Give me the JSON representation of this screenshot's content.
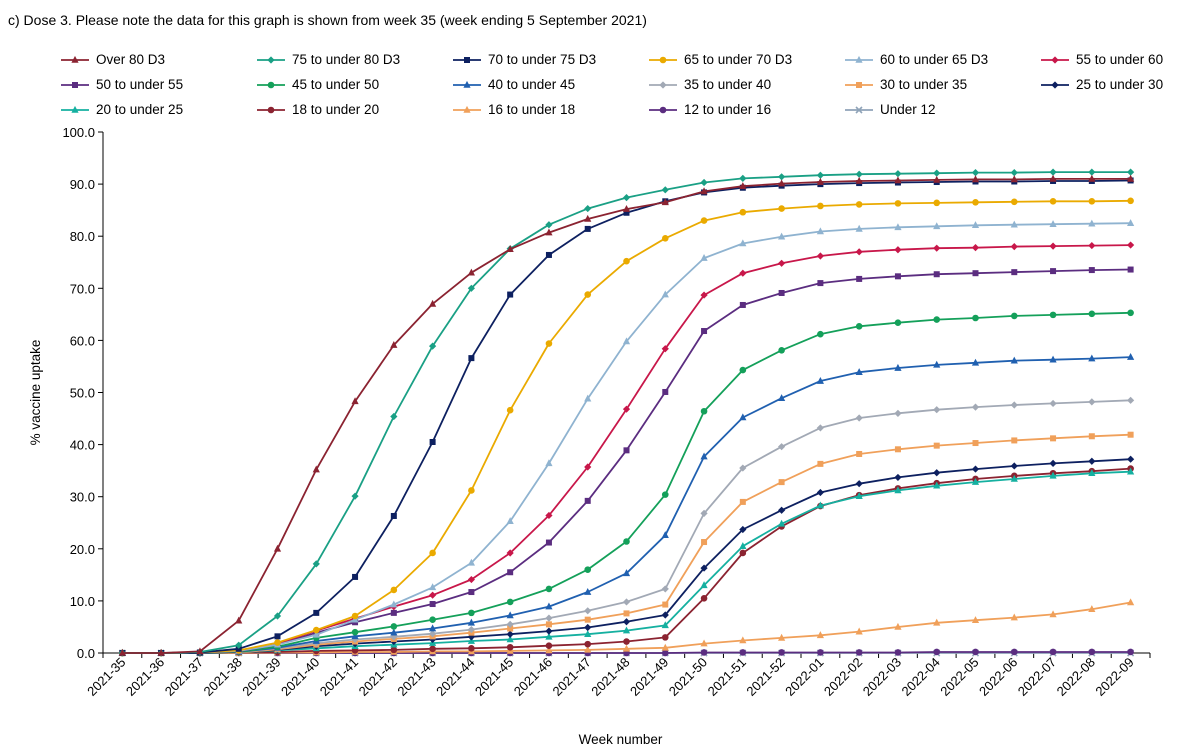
{
  "caption": "c) Dose 3. Please note the data for this graph is shown from week 35 (week ending 5 September 2021)",
  "chart_data": {
    "type": "line",
    "title": "c) Dose 3. Please note the data for this graph is shown from week 35 (week ending 5 September 2021)",
    "xlabel": "Week number",
    "ylabel": "% vaccine uptake",
    "ylim": [
      0,
      100
    ],
    "yticks": [
      "0.0",
      "10.0",
      "20.0",
      "30.0",
      "40.0",
      "50.0",
      "60.0",
      "70.0",
      "80.0",
      "90.0",
      "100.0"
    ],
    "grid": false,
    "legend_position": "top",
    "categories": [
      "2021-35",
      "2021-36",
      "2021-37",
      "2021-38",
      "2021-39",
      "2021-40",
      "2021-41",
      "2021-42",
      "2021-43",
      "2021-44",
      "2021-45",
      "2021-46",
      "2021-47",
      "2021-48",
      "2021-49",
      "2021-50",
      "2021-51",
      "2021-52",
      "2022-01",
      "2022-02",
      "2022-03",
      "2022-04",
      "2022-05",
      "2022-06",
      "2022-07",
      "2022-08",
      "2022-09"
    ],
    "series": [
      {
        "name": "Over 80 D3",
        "color": "#8b2331",
        "marker": "triangle",
        "values": [
          0,
          0,
          0.3,
          6.2,
          20,
          35.2,
          48.3,
          59.1,
          67,
          73,
          77.5,
          80.7,
          83.3,
          85.2,
          86.5,
          88.6,
          89.6,
          90.1,
          90.4,
          90.6,
          90.7,
          90.8,
          90.9,
          90.9,
          91,
          91,
          91
        ]
      },
      {
        "name": "75 to under 80 D3",
        "color": "#1aa085",
        "marker": "diamond",
        "values": [
          0,
          0,
          0.2,
          1.5,
          7.1,
          17.1,
          30.1,
          45.4,
          58.9,
          70,
          77.6,
          82.2,
          85.3,
          87.4,
          88.9,
          90.3,
          91.1,
          91.4,
          91.7,
          91.9,
          92,
          92.1,
          92.2,
          92.2,
          92.3,
          92.3,
          92.3
        ]
      },
      {
        "name": "70 to under 75 D3",
        "color": "#0d2060",
        "marker": "square",
        "values": [
          0,
          0,
          0.1,
          0.8,
          3.2,
          7.7,
          14.6,
          26.3,
          40.5,
          56.6,
          68.8,
          76.4,
          81.4,
          84.5,
          86.7,
          88.4,
          89.3,
          89.7,
          90,
          90.2,
          90.3,
          90.4,
          90.5,
          90.5,
          90.6,
          90.6,
          90.7
        ]
      },
      {
        "name": "65 to under 70 D3",
        "color": "#eaaa00",
        "marker": "circle",
        "values": [
          0,
          0,
          0.1,
          0.5,
          2,
          4.4,
          7.1,
          12.1,
          19.2,
          31.2,
          46.6,
          59.4,
          68.8,
          75.2,
          79.6,
          83,
          84.6,
          85.3,
          85.8,
          86.1,
          86.3,
          86.4,
          86.5,
          86.6,
          86.7,
          86.7,
          86.8
        ]
      },
      {
        "name": "60 to under 65 D3",
        "color": "#8fb3d0",
        "marker": "triangle",
        "values": [
          0,
          0,
          0.1,
          0.4,
          1.6,
          3.5,
          6.4,
          9.3,
          12.6,
          17.3,
          25.3,
          36.4,
          48.8,
          59.8,
          68.8,
          75.8,
          78.6,
          79.9,
          80.9,
          81.4,
          81.7,
          81.9,
          82.1,
          82.2,
          82.3,
          82.4,
          82.5
        ]
      },
      {
        "name": "55 to under 60",
        "color": "#c8174a",
        "marker": "diamond",
        "values": [
          0,
          0,
          0.1,
          0.4,
          1.8,
          4.3,
          6.6,
          8.9,
          11.1,
          14.1,
          19.2,
          26.4,
          35.7,
          46.8,
          58.4,
          68.7,
          72.9,
          74.8,
          76.2,
          77,
          77.4,
          77.7,
          77.8,
          78,
          78.1,
          78.2,
          78.3
        ]
      },
      {
        "name": "50 to under 55",
        "color": "#5b2d80",
        "marker": "square",
        "values": [
          0,
          0,
          0.1,
          0.3,
          1.6,
          3.9,
          5.9,
          7.7,
          9.4,
          11.7,
          15.5,
          21.2,
          29.2,
          38.9,
          50.1,
          61.8,
          66.8,
          69.1,
          71,
          71.8,
          72.3,
          72.7,
          72.9,
          73.1,
          73.3,
          73.5,
          73.6
        ]
      },
      {
        "name": "45 to under 50",
        "color": "#14a05a",
        "marker": "circle",
        "values": [
          0,
          0,
          0.1,
          0.2,
          1.2,
          2.9,
          4,
          5.1,
          6.4,
          7.7,
          9.8,
          12.3,
          16,
          21.4,
          30.4,
          46.4,
          54.3,
          58.1,
          61.2,
          62.7,
          63.4,
          64,
          64.3,
          64.7,
          64.9,
          65.1,
          65.3
        ]
      },
      {
        "name": "40 to under 45",
        "color": "#2060b0",
        "marker": "triangle",
        "values": [
          0,
          0,
          0.1,
          0.2,
          1,
          2.3,
          3.2,
          3.9,
          4.7,
          5.8,
          7.2,
          8.9,
          11.7,
          15.3,
          22.6,
          37.7,
          45.2,
          48.9,
          52.2,
          53.9,
          54.7,
          55.3,
          55.7,
          56.1,
          56.3,
          56.5,
          56.8
        ]
      },
      {
        "name": "35 to under 40",
        "color": "#a2a9b5",
        "marker": "diamond",
        "values": [
          0,
          0,
          0.1,
          0.2,
          0.9,
          1.9,
          2.6,
          3.1,
          3.7,
          4.5,
          5.5,
          6.7,
          8.1,
          9.8,
          12.3,
          26.8,
          35.5,
          39.6,
          43.2,
          45.1,
          46,
          46.7,
          47.2,
          47.6,
          47.9,
          48.2,
          48.5
        ]
      },
      {
        "name": "30 to under 35",
        "color": "#f0a05a",
        "marker": "square",
        "values": [
          0,
          0,
          0.1,
          0.1,
          0.7,
          1.6,
          2.2,
          2.7,
          3.2,
          3.9,
          4.7,
          5.5,
          6.4,
          7.6,
          9.3,
          21.3,
          29,
          32.8,
          36.3,
          38.2,
          39.1,
          39.8,
          40.3,
          40.8,
          41.2,
          41.6,
          41.9
        ]
      },
      {
        "name": "25 to under 30",
        "color": "#0d2060",
        "marker": "diamond",
        "values": [
          0,
          0,
          0,
          0.1,
          0.6,
          1.3,
          1.8,
          2.2,
          2.6,
          3.1,
          3.6,
          4.2,
          4.9,
          6,
          7.3,
          16.3,
          23.7,
          27.4,
          30.8,
          32.5,
          33.7,
          34.6,
          35.3,
          35.9,
          36.4,
          36.8,
          37.2
        ]
      },
      {
        "name": "20 to under 25",
        "color": "#15b0a0",
        "marker": "triangle",
        "values": [
          0,
          0,
          0,
          0.1,
          0.5,
          0.9,
          1.3,
          1.6,
          1.9,
          2.3,
          2.6,
          3.1,
          3.6,
          4.3,
          5.3,
          13,
          20.5,
          24.8,
          28.3,
          30.1,
          31.2,
          32.1,
          32.8,
          33.4,
          34,
          34.5,
          34.8
        ]
      },
      {
        "name": "18 to under 20",
        "color": "#8b2331",
        "marker": "circle",
        "values": [
          0,
          0,
          0,
          0.1,
          0.2,
          0.4,
          0.5,
          0.6,
          0.8,
          0.9,
          1.1,
          1.4,
          1.7,
          2.2,
          3,
          10.5,
          19.2,
          24.3,
          28.2,
          30.3,
          31.6,
          32.6,
          33.4,
          34,
          34.5,
          34.9,
          35.4
        ]
      },
      {
        "name": "16 to under 18",
        "color": "#f0a05a",
        "marker": "triangle",
        "values": [
          0,
          0,
          0,
          0,
          0.1,
          0.1,
          0.2,
          0.2,
          0.3,
          0.3,
          0.4,
          0.5,
          0.6,
          0.8,
          1,
          1.8,
          2.4,
          2.9,
          3.4,
          4.1,
          5,
          5.8,
          6.3,
          6.8,
          7.4,
          8.4,
          9.7
        ]
      },
      {
        "name": "12 to under 16",
        "color": "#5b2d80",
        "marker": "circle",
        "values": [
          0,
          0,
          0,
          0,
          0,
          0,
          0,
          0,
          0,
          0,
          0,
          0,
          0,
          0,
          0,
          0.1,
          0.1,
          0.1,
          0.1,
          0.1,
          0.1,
          0.2,
          0.2,
          0.2,
          0.2,
          0.2,
          0.2
        ]
      },
      {
        "name": "Under 12",
        "color": "#8fa3b8",
        "marker": "cross",
        "values": [
          0,
          0,
          0,
          0,
          0,
          0,
          0,
          0,
          0,
          0,
          0,
          0,
          0,
          0,
          0,
          0,
          0,
          0,
          0,
          0,
          0,
          0,
          0,
          0,
          0,
          0,
          0
        ]
      }
    ]
  }
}
